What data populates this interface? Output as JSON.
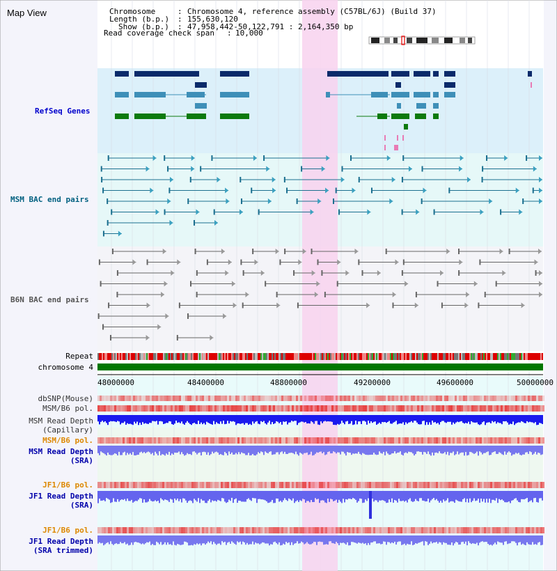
{
  "app": {
    "title": "Map View"
  },
  "header": {
    "chromosome_label": "Chromosome",
    "chromosome_value": "Chromosome 4, reference assembly (C57BL/6J) (Build 37)",
    "length_label": "Length (b.p.)",
    "length_value": "155,630,120",
    "show_label": "Show (b.p.)",
    "show_value": "47,958,442-50,122,791 : 2,164,350 bp",
    "coverage_label": "Read coverage check span",
    "coverage_value": "10,000"
  },
  "tracks": {
    "refseq": "RefSeq Genes",
    "msm_bac": "MSM BAC end pairs",
    "b6n_bac": "B6N BAC end pairs",
    "repeat": "Repeat",
    "chromosome": "chromosome 4",
    "dbsnp": "dbSNP(Mouse)",
    "msm_b6_pol_1": "MSM/B6 pol.",
    "msm_depth_cap_1": "MSM Read Depth",
    "msm_depth_cap_2": "(Capillary)",
    "msm_b6_pol_2": "MSM/B6 pol.",
    "msm_depth_sra_1": "MSM Read Depth",
    "msm_depth_sra_2": "(SRA)",
    "jf1_pol_1": "JF1/B6 pol.",
    "jf1_depth_sra_1": "JF1 Read Depth",
    "jf1_depth_sra_2": "(SRA)",
    "jf1_pol_2": "JF1/B6 pol.",
    "jf1_depth_trim_1": "JF1 Read Depth",
    "jf1_depth_trim_2": "(SRA trimmed)"
  },
  "ruler": {
    "ticks": [
      "48000000",
      "48400000",
      "48800000",
      "49200000",
      "49600000",
      "50000000"
    ]
  },
  "colors": {
    "refseq_band": "#dff0fa",
    "msm_band": "#e6f8f8",
    "b6n_band": "#f4f4f8",
    "lower_band": "#e8fbfb",
    "highlight": "#f8d6f0",
    "refseq_label": "#0000cc",
    "msm_label": "#006080",
    "b6n_label": "#555555",
    "orange_label": "#dd8800",
    "blue_label": "#0000aa",
    "chromosome_bar": "#007700"
  }
}
